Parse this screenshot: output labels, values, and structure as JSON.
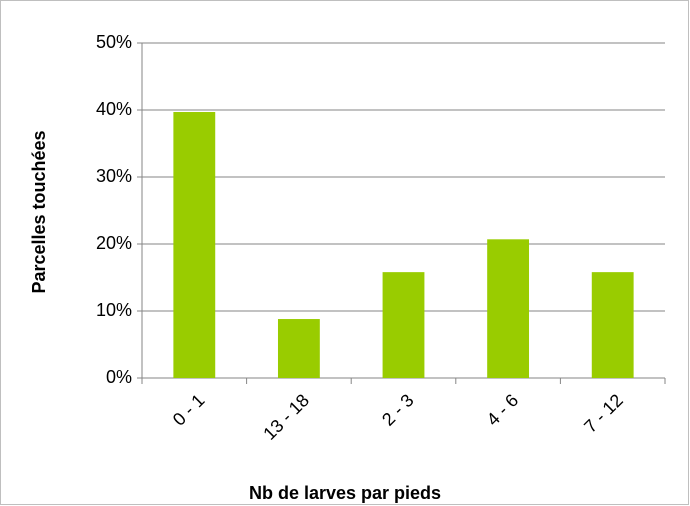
{
  "chart_data": {
    "type": "bar",
    "x_label": "Nb de larves par pieds",
    "y_label": "Parcelles touchées",
    "categories": [
      "0 - 1",
      "13 - 18",
      "2 - 3",
      "4 - 6",
      "7 - 12"
    ],
    "values": [
      39.7,
      8.8,
      15.8,
      20.7,
      15.8
    ],
    "color": "#99cc00",
    "ylim": [
      0,
      50
    ],
    "yticks": [
      {
        "value": 0,
        "label": "0%"
      },
      {
        "value": 10,
        "label": "10%"
      },
      {
        "value": 20,
        "label": "20%"
      },
      {
        "value": 30,
        "label": "30%"
      },
      {
        "value": 40,
        "label": "40%"
      },
      {
        "value": 50,
        "label": "50%"
      }
    ],
    "grid": true
  }
}
